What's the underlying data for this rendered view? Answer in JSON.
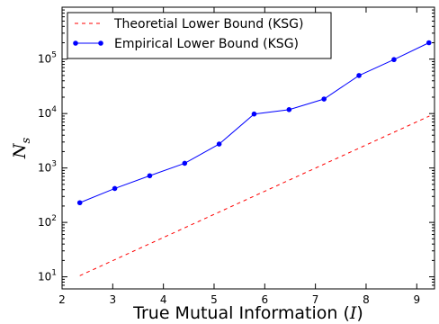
{
  "chart_data": {
    "type": "line",
    "xlabel": "True Mutual Information",
    "xlabel_symbol": "I",
    "ylabel_symbol": "N",
    "ylabel_subscript": "s",
    "xlim": [
      2,
      9.35
    ],
    "ylim": [
      6,
      900000
    ],
    "yscale": "log",
    "x_ticks": [
      "2",
      "3",
      "4",
      "5",
      "6",
      "7",
      "8",
      "9"
    ],
    "y_ticks": [
      {
        "base": "10",
        "exp": "1"
      },
      {
        "base": "10",
        "exp": "2"
      },
      {
        "base": "10",
        "exp": "3"
      },
      {
        "base": "10",
        "exp": "4"
      },
      {
        "base": "10",
        "exp": "5"
      }
    ],
    "grid": false,
    "legend": "top-left",
    "series": [
      {
        "name": "Theoretial Lower Bound (KSG)",
        "color": "#ff0000",
        "style": "dashed",
        "x": [
          2.35,
          9.25
        ],
        "y": [
          10.5,
          9000
        ]
      },
      {
        "name": "Empirical Lower Bound (KSG)",
        "color": "#0000ff",
        "style": "solid-markers",
        "x": [
          2.35,
          3.04,
          3.73,
          4.42,
          5.1,
          5.79,
          6.48,
          7.17,
          7.86,
          8.55,
          9.24
        ],
        "y": [
          230,
          420,
          720,
          1220,
          2750,
          9800,
          11800,
          18500,
          50000,
          98000,
          200000
        ]
      }
    ]
  }
}
